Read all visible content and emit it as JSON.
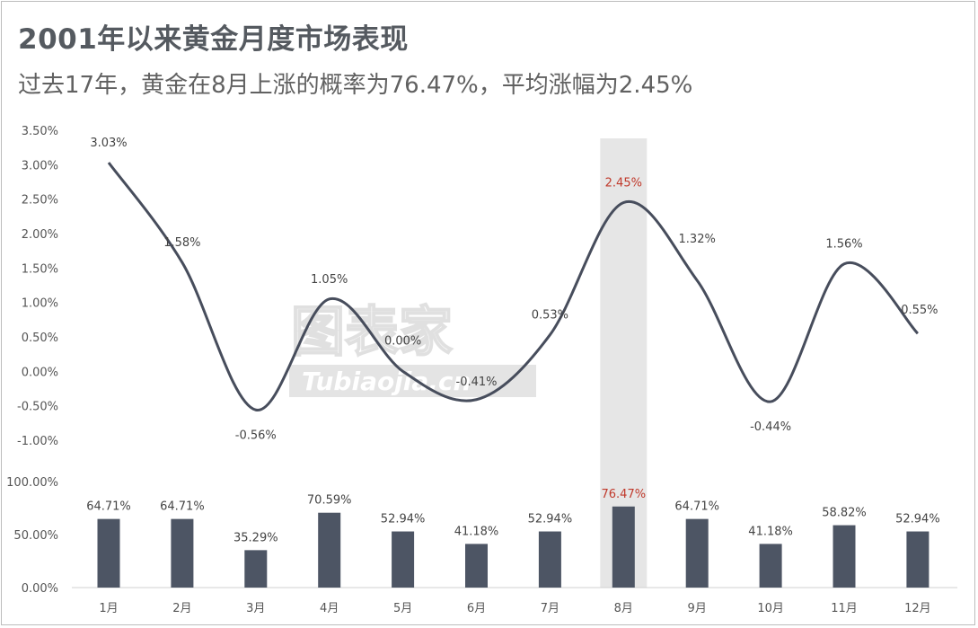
{
  "title": "2001年以来黄金月度市场表现",
  "subtitle": "过去17年，黄金在8月上涨的概率为76.47%，平均涨幅为2.45%",
  "watermark": {
    "main": "图表家",
    "sub": "Tubiaojia.cn"
  },
  "chart_data": [
    {
      "type": "line",
      "categories": [
        "1月",
        "2月",
        "3月",
        "4月",
        "5月",
        "6月",
        "7月",
        "8月",
        "9月",
        "10月",
        "11月",
        "12月"
      ],
      "series": [
        {
          "values": [
            3.03,
            1.58,
            -0.56,
            1.05,
            0.0,
            -0.41,
            0.53,
            2.45,
            1.32,
            -0.44,
            1.56,
            0.55
          ],
          "labels": [
            "3.03%",
            "1.58%",
            "-0.56%",
            "1.05%",
            "0.00%",
            "-0.41%",
            "0.53%",
            "2.45%",
            "1.32%",
            "-0.44%",
            "1.56%",
            "0.55%"
          ]
        }
      ],
      "yticks": [
        "3.50%",
        "3.00%",
        "2.50%",
        "2.00%",
        "1.50%",
        "1.00%",
        "0.50%",
        "0.00%",
        "-0.50%",
        "-1.00%"
      ],
      "ylim": [
        -1.0,
        3.5
      ],
      "highlight_category": "8月",
      "line_color": "#474d5c",
      "highlight_label_color": "#c0392b",
      "grid": false
    },
    {
      "type": "bar",
      "categories": [
        "1月",
        "2月",
        "3月",
        "4月",
        "5月",
        "6月",
        "7月",
        "8月",
        "9月",
        "10月",
        "11月",
        "12月"
      ],
      "series": [
        {
          "values": [
            64.71,
            64.71,
            35.29,
            70.59,
            52.94,
            41.18,
            52.94,
            76.47,
            64.71,
            41.18,
            58.82,
            52.94
          ],
          "labels": [
            "64.71%",
            "64.71%",
            "35.29%",
            "70.59%",
            "52.94%",
            "41.18%",
            "52.94%",
            "76.47%",
            "64.71%",
            "41.18%",
            "58.82%",
            "52.94%"
          ]
        }
      ],
      "yticks": [
        "100.00%",
        "50.00%",
        "0.00%"
      ],
      "ylim": [
        0,
        100
      ],
      "highlight_category": "8月",
      "bar_color": "#4d5564",
      "highlight_label_color": "#c0392b",
      "grid": false
    }
  ]
}
